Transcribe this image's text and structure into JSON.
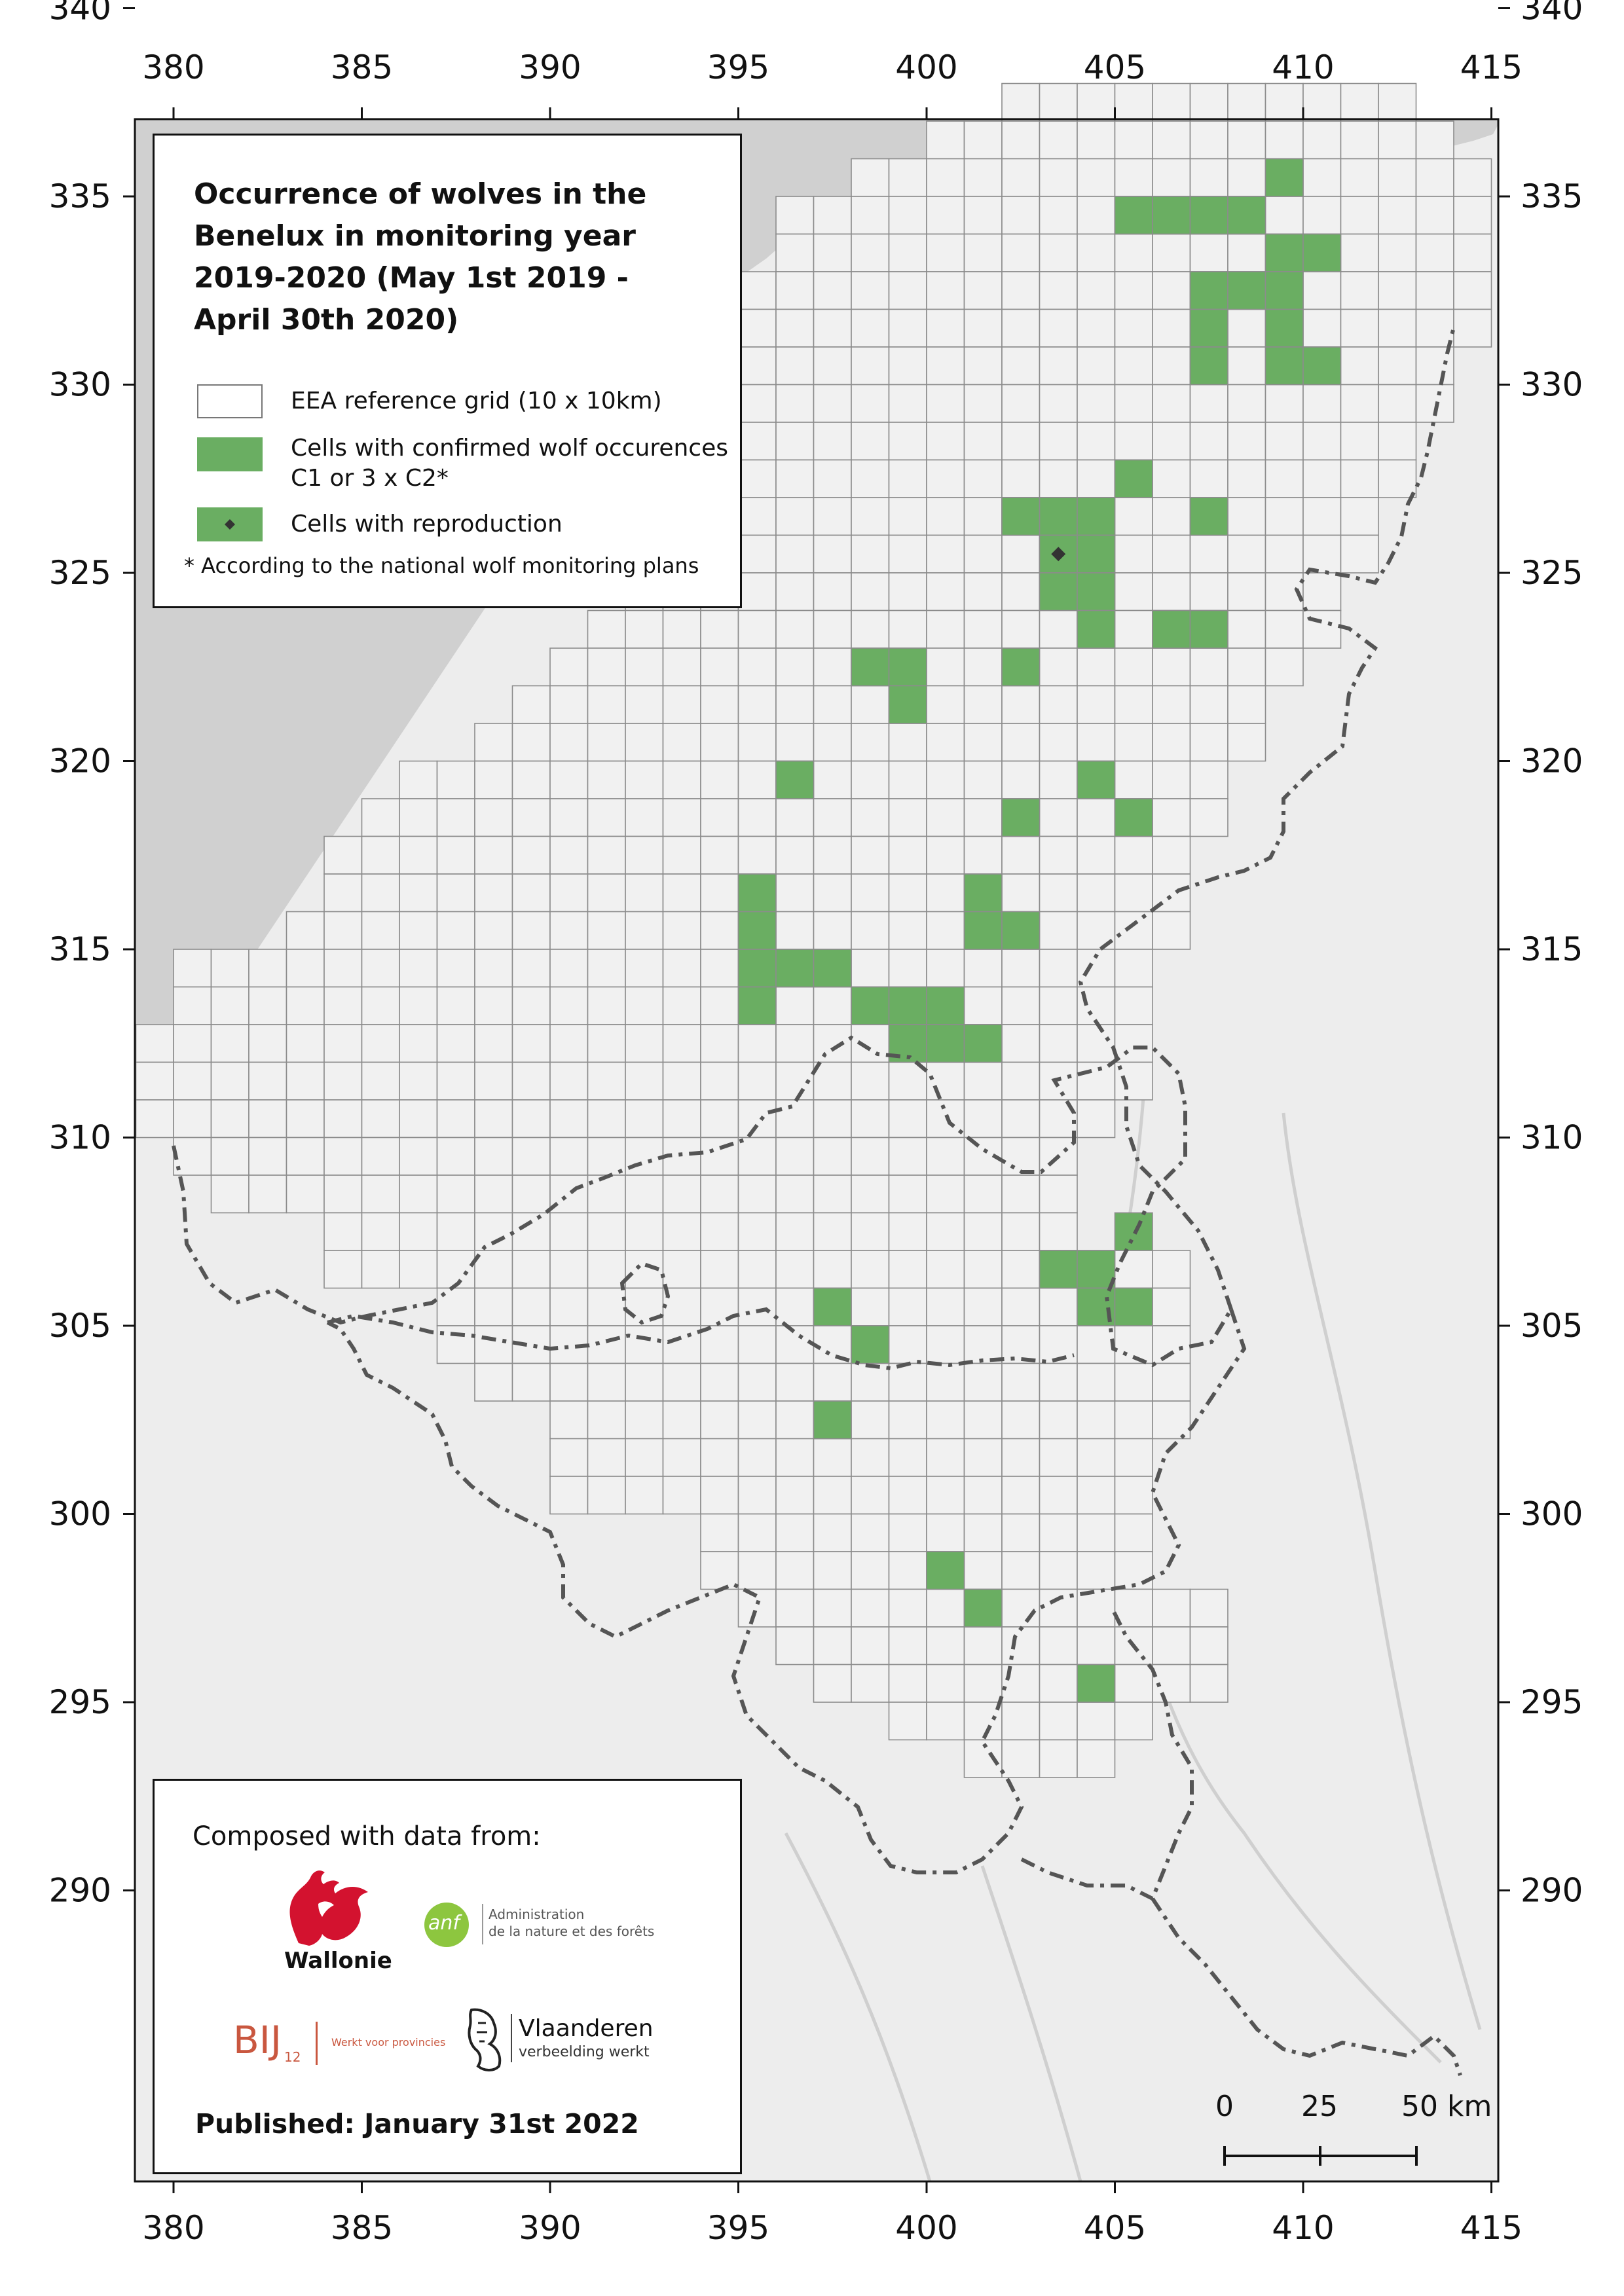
{
  "title": "Occurrence of wolves in the Benelux in monitoring year 2019-2020 (May 1st 2019 - April 30th 2020)",
  "legend": {
    "grid_label": "EEA reference grid (10 x 10km)",
    "confirmed_label_1": "Cells with confirmed wolf occurences",
    "confirmed_label_2": "C1 or 3 x C2*",
    "reproduction_label": "Cells with reproduction",
    "footnote": "* According to the national wolf monitoring plans"
  },
  "axes": {
    "x_ticks": [
      "380",
      "385",
      "390",
      "395",
      "400",
      "405",
      "410",
      "415"
    ],
    "y_ticks": [
      "340",
      "335",
      "330",
      "325",
      "320",
      "315",
      "310",
      "305",
      "300",
      "295",
      "290"
    ]
  },
  "source_box": {
    "composed": "Composed with data from:",
    "wallonie": "Wallonie",
    "anf_logo": "anf",
    "anf_line1": "Administration",
    "anf_line2": "de la nature et des forêts",
    "bij12_logo": "BIJ",
    "bij12_sub": "12",
    "bij12_tagline": "Werkt voor provincies",
    "vlaanderen": "Vlaanderen",
    "vlaanderen_sub": "verbeelding werkt",
    "published": "Published: January 31st 2022"
  },
  "scale": {
    "labels": [
      "0",
      "25",
      "50 km"
    ]
  },
  "colors": {
    "wolf_cell": "#6aae62",
    "sea": "#d0d0d0",
    "land": "#ededed",
    "grid": "#8c8c8c",
    "border": "#555555",
    "reproduction": "#333333"
  },
  "map_data": {
    "occupied_cells": [
      [
        409,
        335
      ],
      [
        405,
        334
      ],
      [
        406,
        334
      ],
      [
        407,
        334
      ],
      [
        408,
        334
      ],
      [
        409,
        333
      ],
      [
        410,
        333
      ],
      [
        407,
        332
      ],
      [
        408,
        332
      ],
      [
        409,
        332
      ],
      [
        407,
        331
      ],
      [
        409,
        331
      ],
      [
        409,
        330
      ],
      [
        407,
        330
      ],
      [
        410,
        330
      ],
      [
        405,
        327
      ],
      [
        402,
        326
      ],
      [
        403,
        326
      ],
      [
        404,
        326
      ],
      [
        407,
        326
      ],
      [
        403,
        325
      ],
      [
        404,
        325
      ],
      [
        403,
        324
      ],
      [
        404,
        324
      ],
      [
        404,
        323
      ],
      [
        406,
        323
      ],
      [
        407,
        323
      ],
      [
        398,
        322
      ],
      [
        399,
        322
      ],
      [
        402,
        322
      ],
      [
        399,
        321
      ],
      [
        396,
        319
      ],
      [
        404,
        319
      ],
      [
        402,
        318
      ],
      [
        405,
        318
      ],
      [
        395,
        316
      ],
      [
        401,
        316
      ],
      [
        395,
        315
      ],
      [
        401,
        315
      ],
      [
        402,
        315
      ],
      [
        395,
        314
      ],
      [
        396,
        314
      ],
      [
        397,
        314
      ],
      [
        395,
        313
      ],
      [
        398,
        313
      ],
      [
        399,
        313
      ],
      [
        400,
        313
      ],
      [
        399,
        312
      ],
      [
        400,
        312
      ],
      [
        401,
        312
      ],
      [
        405,
        307
      ],
      [
        403,
        306
      ],
      [
        404,
        306
      ],
      [
        397,
        305
      ],
      [
        404,
        305
      ],
      [
        405,
        305
      ],
      [
        398,
        304
      ],
      [
        397,
        302
      ],
      [
        400,
        298
      ],
      [
        401,
        297
      ],
      [
        404,
        295
      ]
    ],
    "reproduction_cells": [
      [
        403,
        325
      ]
    ]
  }
}
